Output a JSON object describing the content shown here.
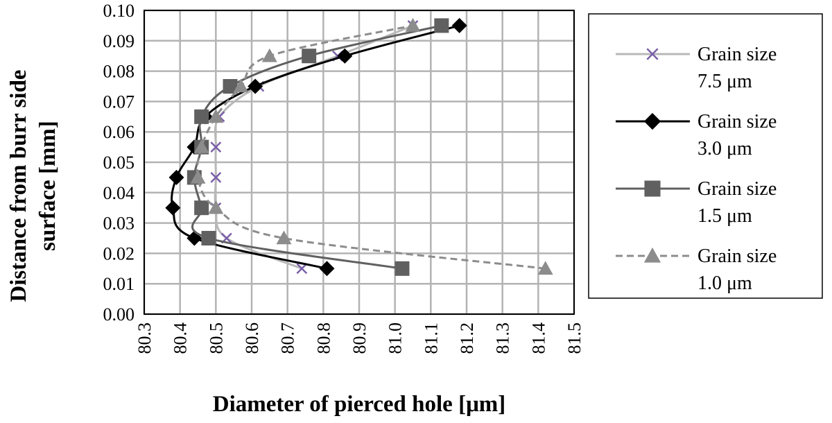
{
  "chart_data": {
    "type": "line",
    "xlabel": "Diameter of pierced hole [μm]",
    "ylabel_lines": [
      "Distance from burr side",
      "surface [mm]"
    ],
    "xlim": [
      80.3,
      81.5
    ],
    "ylim": [
      0.0,
      0.1
    ],
    "x_ticks": [
      "80.3",
      "80.4",
      "80.5",
      "80.6",
      "80.7",
      "80.8",
      "80.9",
      "81.0",
      "81.1",
      "81.2",
      "81.3",
      "81.4",
      "81.5"
    ],
    "y_ticks": [
      "0.00",
      "0.01",
      "0.02",
      "0.03",
      "0.04",
      "0.05",
      "0.06",
      "0.07",
      "0.08",
      "0.09",
      "0.10"
    ],
    "grid": true,
    "legend_position": "right",
    "series": [
      {
        "name_lines": [
          "Grain size",
          "7.5 μm"
        ],
        "color": "#b8b8b8",
        "marker": "x",
        "marker_color": "#7a5fa8",
        "dashed": false,
        "points": [
          [
            80.74,
            0.015
          ],
          [
            80.53,
            0.025
          ],
          [
            80.5,
            0.035
          ],
          [
            80.5,
            0.045
          ],
          [
            80.5,
            0.055
          ],
          [
            80.51,
            0.065
          ],
          [
            80.62,
            0.075
          ],
          [
            80.84,
            0.085
          ],
          [
            81.05,
            0.095
          ]
        ]
      },
      {
        "name_lines": [
          "Grain size",
          "3.0 μm"
        ],
        "color": "#000000",
        "marker": "diamond",
        "marker_color": "#000000",
        "dashed": false,
        "points": [
          [
            80.81,
            0.015
          ],
          [
            80.44,
            0.025
          ],
          [
            80.38,
            0.035
          ],
          [
            80.39,
            0.045
          ],
          [
            80.44,
            0.055
          ],
          [
            80.47,
            0.065
          ],
          [
            80.61,
            0.075
          ],
          [
            80.86,
            0.085
          ],
          [
            81.18,
            0.095
          ]
        ]
      },
      {
        "name_lines": [
          "Grain size",
          "1.5 μm"
        ],
        "color": "#606060",
        "marker": "square",
        "marker_color": "#606060",
        "dashed": false,
        "points": [
          [
            81.02,
            0.015
          ],
          [
            80.48,
            0.025
          ],
          [
            80.46,
            0.035
          ],
          [
            80.44,
            0.045
          ],
          [
            80.46,
            0.055
          ],
          [
            80.46,
            0.065
          ],
          [
            80.54,
            0.075
          ],
          [
            80.76,
            0.085
          ],
          [
            81.13,
            0.095
          ]
        ]
      },
      {
        "name_lines": [
          "Grain size",
          "1.0 μm"
        ],
        "color": "#8c8c8c",
        "marker": "triangle",
        "marker_color": "#8c8c8c",
        "dashed": true,
        "points": [
          [
            81.42,
            0.015
          ],
          [
            80.69,
            0.025
          ],
          [
            80.5,
            0.035
          ],
          [
            80.45,
            0.045
          ],
          [
            80.46,
            0.055
          ],
          [
            80.5,
            0.065
          ],
          [
            80.57,
            0.075
          ],
          [
            80.65,
            0.085
          ],
          [
            81.05,
            0.095
          ]
        ]
      }
    ]
  }
}
